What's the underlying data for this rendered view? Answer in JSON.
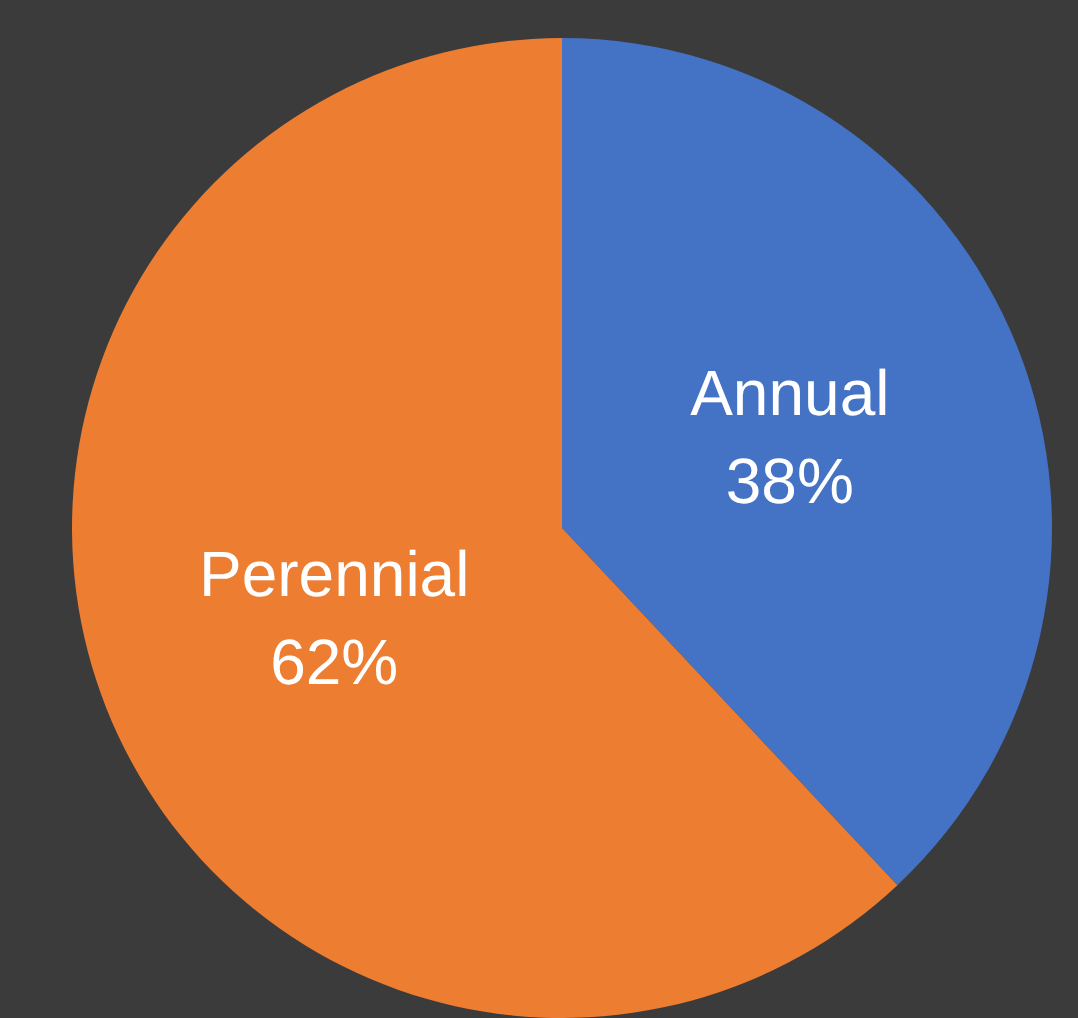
{
  "chart_data": {
    "type": "pie",
    "categories": [
      "Annual",
      "Perennial"
    ],
    "values": [
      38,
      62
    ],
    "colors": [
      "#4472c4",
      "#ed7d31"
    ],
    "value_labels": [
      "38%",
      "62%"
    ]
  }
}
